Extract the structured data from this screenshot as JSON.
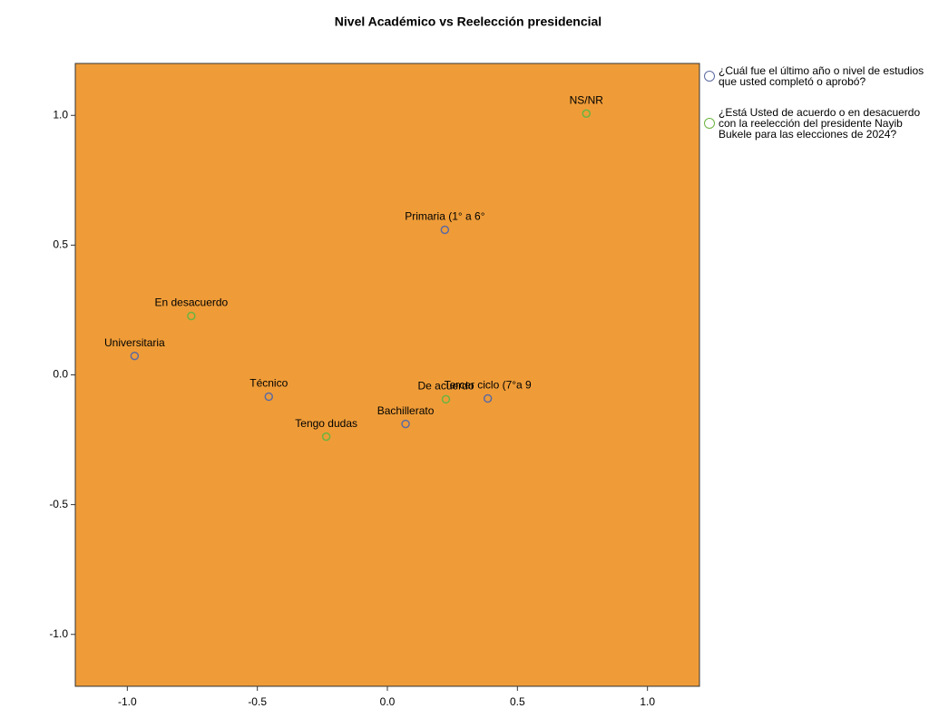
{
  "chart_data": {
    "type": "scatter",
    "title": "Nivel Académico vs Reelección presidencial",
    "xlim": [
      -1.2,
      1.2
    ],
    "ylim": [
      -1.2,
      1.2
    ],
    "xticks": [
      {
        "value": -1,
        "label": "-1.0"
      },
      -0.5,
      {
        "value": 0,
        "label": "0.0"
      },
      0.5,
      {
        "value": 1,
        "label": "1.0"
      }
    ],
    "yticks": [
      {
        "value": -1,
        "label": "-1.0"
      },
      -0.5,
      {
        "value": 0,
        "label": "0.0"
      },
      0.5,
      {
        "value": 1,
        "label": "1.0"
      }
    ],
    "background": "#ef9c38",
    "series": [
      {
        "name": "¿Cuál fue el último año o nivel de estudios que usted completó o aprobó?",
        "color": "#5d6aa0",
        "labels": [
          "Primaria (1° a 6°",
          "Universitaria",
          "Técnico",
          "Bachillerato",
          "Tercer ciclo (7°a 9"
        ],
        "x": [
          0.221,
          -0.972,
          -0.456,
          0.07,
          0.386
        ],
        "values": [
          0.559,
          0.073,
          -0.084,
          -0.189,
          -0.091
        ]
      },
      {
        "name": "¿Está Usted de acuerdo o en desacuerdo con la reelección del presidente Nayib Bukele para las elecciones de 2024?",
        "color": "#6cb33f",
        "labels": [
          "NS/NR",
          "En desacuerdo",
          "Tengo dudas",
          "De acuerdo"
        ],
        "x": [
          0.765,
          -0.754,
          -0.235,
          0.225
        ],
        "values": [
          1.007,
          0.227,
          -0.238,
          -0.094
        ]
      }
    ]
  }
}
